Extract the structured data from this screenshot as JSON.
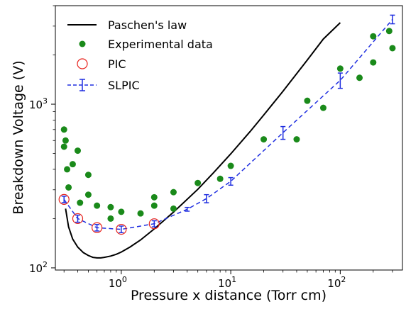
{
  "chart_data": {
    "type": "scatter",
    "title": "",
    "xlabel": "Pressure x distance (Torr cm)",
    "ylabel": "Breakdown Voltage (V)",
    "xscale": "log",
    "yscale": "log",
    "xlim": [
      0.25,
      370
    ],
    "ylim": [
      97,
      4000
    ],
    "x_ticks": [
      {
        "value": 1,
        "label": "10",
        "exp": "0"
      },
      {
        "value": 10,
        "label": "10",
        "exp": "1"
      },
      {
        "value": 100,
        "label": "10",
        "exp": "2"
      }
    ],
    "y_ticks": [
      {
        "value": 100,
        "label": "10",
        "exp": "2"
      },
      {
        "value": 1000,
        "label": "10",
        "exp": "3"
      }
    ],
    "grid": false,
    "legend_position": "top-left",
    "series": [
      {
        "name": "Paschen's law",
        "kind": "line",
        "color": "#000000",
        "x": [
          0.31,
          0.33,
          0.36,
          0.4,
          0.45,
          0.5,
          0.55,
          0.6,
          0.65,
          0.7,
          0.8,
          0.9,
          1.0,
          1.2,
          1.5,
          2.0,
          3.0,
          5.0,
          7.0,
          10,
          15,
          20,
          30,
          50,
          70,
          100
        ],
        "values": [
          230,
          178,
          150,
          134,
          124,
          119,
          116,
          115,
          115,
          116,
          118,
          121,
          125,
          134,
          148,
          173,
          219,
          302,
          383,
          497,
          680,
          858,
          1200,
          1860,
          2500,
          3150
        ]
      },
      {
        "name": "Experimental data",
        "kind": "scatter",
        "color": "#1a8a1a",
        "x": [
          0.3,
          0.31,
          0.32,
          0.33,
          0.3,
          0.36,
          0.4,
          0.42,
          0.5,
          0.5,
          0.6,
          0.8,
          0.8,
          1.0,
          1.5,
          2.0,
          2.0,
          3.0,
          3.0,
          5.0,
          8.0,
          10.0,
          20.0,
          40.0,
          50.0,
          70.0,
          100.0,
          150.0,
          200.0,
          200.0,
          280.0,
          300.0
        ],
        "values": [
          700,
          600,
          400,
          310,
          550,
          430,
          520,
          250,
          280,
          370,
          240,
          200,
          235,
          220,
          215,
          270,
          240,
          290,
          230,
          330,
          350,
          420,
          610,
          610,
          1050,
          950,
          1650,
          1450,
          2600,
          1800,
          2800,
          2200
        ]
      },
      {
        "name": "PIC",
        "kind": "scatter-open",
        "color": "#e8231d",
        "x": [
          0.3,
          0.4,
          0.6,
          1.0,
          2.0
        ],
        "values": [
          262,
          200,
          176,
          172,
          186
        ]
      },
      {
        "name": "SLPIC",
        "kind": "line-errorbar",
        "color": "#1f2ee0",
        "x": [
          0.3,
          0.4,
          0.6,
          1.0,
          2.0,
          4.0,
          6.0,
          10.0,
          30.0,
          100.0,
          300.0
        ],
        "values": [
          262,
          200,
          176,
          172,
          186,
          228,
          265,
          338,
          670,
          1400,
          3300
        ],
        "errors": [
          12,
          10,
          8,
          8,
          8,
          6,
          15,
          18,
          60,
          150,
          200
        ]
      }
    ]
  }
}
